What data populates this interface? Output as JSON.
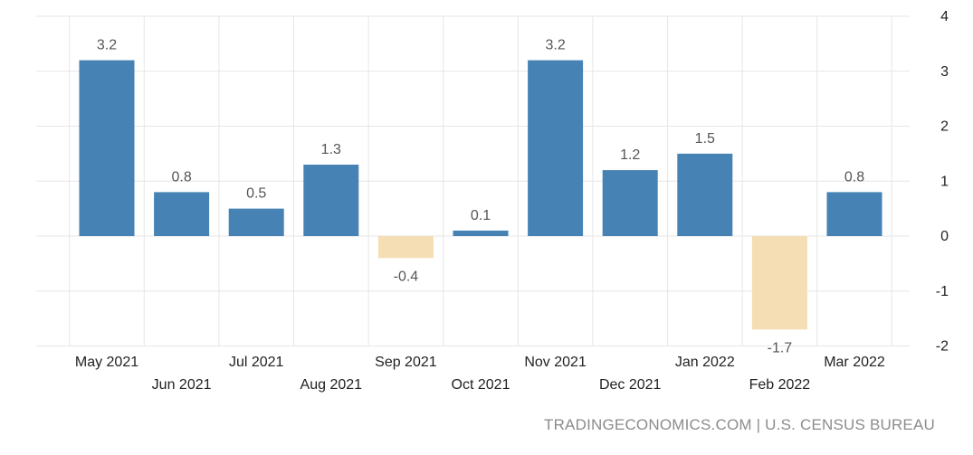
{
  "chart_data": {
    "type": "bar",
    "categories": [
      "May 2021",
      "Jun 2021",
      "Jul 2021",
      "Aug 2021",
      "Sep 2021",
      "Oct 2021",
      "Nov 2021",
      "Dec 2021",
      "Jan 2022",
      "Feb 2022",
      "Mar 2022"
    ],
    "values": [
      3.2,
      0.8,
      0.5,
      1.3,
      -0.4,
      0.1,
      3.2,
      1.2,
      1.5,
      -1.7,
      0.8
    ],
    "data_labels": [
      "3.2",
      "0.8",
      "0.5",
      "1.3",
      "-0.4",
      "0.1",
      "3.2",
      "1.2",
      "1.5",
      "-1.7",
      "0.8"
    ],
    "title": "",
    "xlabel": "",
    "ylabel": "",
    "ylim": [
      -2,
      4
    ],
    "yticks": [
      4,
      3,
      2,
      1,
      0,
      -1,
      -2
    ],
    "ytick_labels": [
      "4",
      "3",
      "2",
      "1",
      "0",
      "-1",
      "-2"
    ],
    "y_axis_side": "right",
    "grid": true,
    "legend": "none",
    "colors": {
      "positive": "#4682b4",
      "negative": "#f5deb3",
      "grid": "#e6e6e6",
      "source_text": "#8c8c8c"
    }
  },
  "source": {
    "text": "TRADINGECONOMICS.COM | U.S. CENSUS BUREAU"
  }
}
